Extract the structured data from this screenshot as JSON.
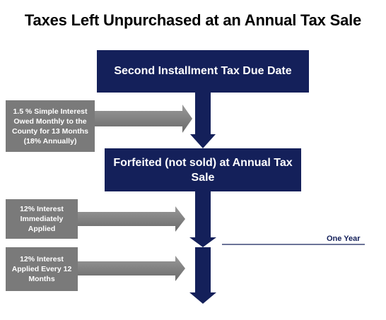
{
  "title": "Taxes Left Unpurchased at an Annual Tax Sale",
  "flow": {
    "due_date": "Second Installment Tax Due Date",
    "forfeited": "Forfeited (not sold) at Annual Tax Sale"
  },
  "interest_notes": [
    "1.5 % Simple Interest Owed Monthly to the County for 13 Months (18% Annually)",
    "12% Interest Immediately Applied",
    "12% Interest Applied Every 12 Months"
  ],
  "one_year_label": "One Year",
  "colors": {
    "navy": "#14205a",
    "gray": "#7a7a7a"
  }
}
